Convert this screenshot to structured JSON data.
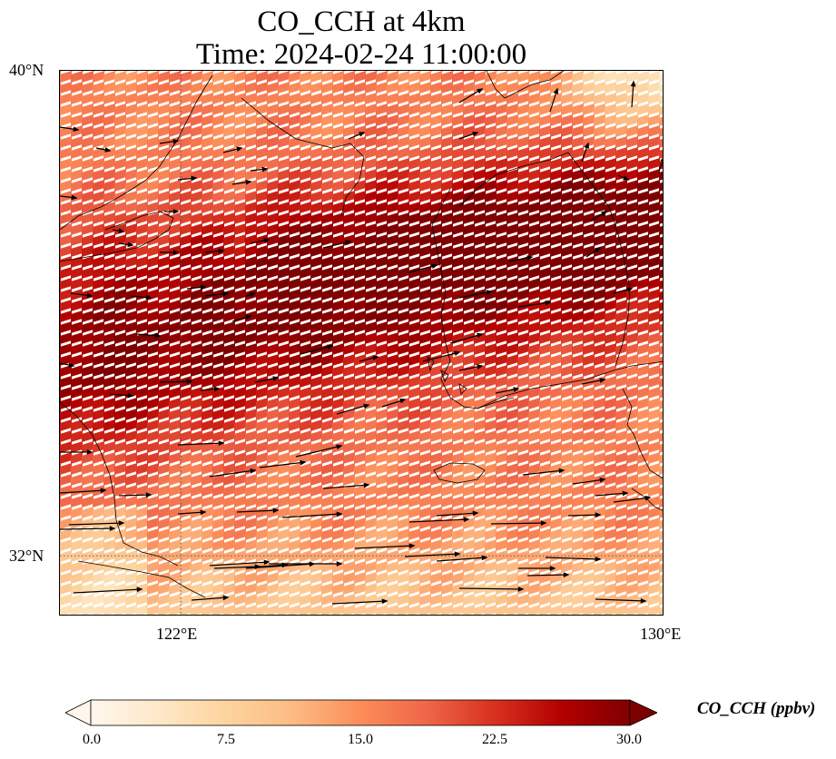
{
  "title": {
    "line1": "CO_CCH at 4km",
    "line2": "Time: 2024-02-24 11:00:00"
  },
  "map": {
    "lat_labels": [
      "40°N",
      "32°N"
    ],
    "lon_labels": [
      "122°E",
      "130°E"
    ],
    "lon_range": [
      120,
      130
    ],
    "lat_range": [
      31,
      40
    ],
    "gridlines_lon": [
      122
    ],
    "gridlines_lat": [
      32
    ],
    "gridline_style": "dotted"
  },
  "colorbar": {
    "label": "CO_CCH (ppbv)",
    "ticks": [
      "0.0",
      "7.5",
      "15.0",
      "22.5",
      "30.0"
    ],
    "range": [
      0,
      30
    ],
    "extend": "both",
    "colormap": "OrRd",
    "colors": [
      "#fff7ec",
      "#fee8c8",
      "#fdd49e",
      "#fdbb84",
      "#fc8d59",
      "#ef6548",
      "#d7301f",
      "#b30000",
      "#7f0000"
    ]
  }
}
